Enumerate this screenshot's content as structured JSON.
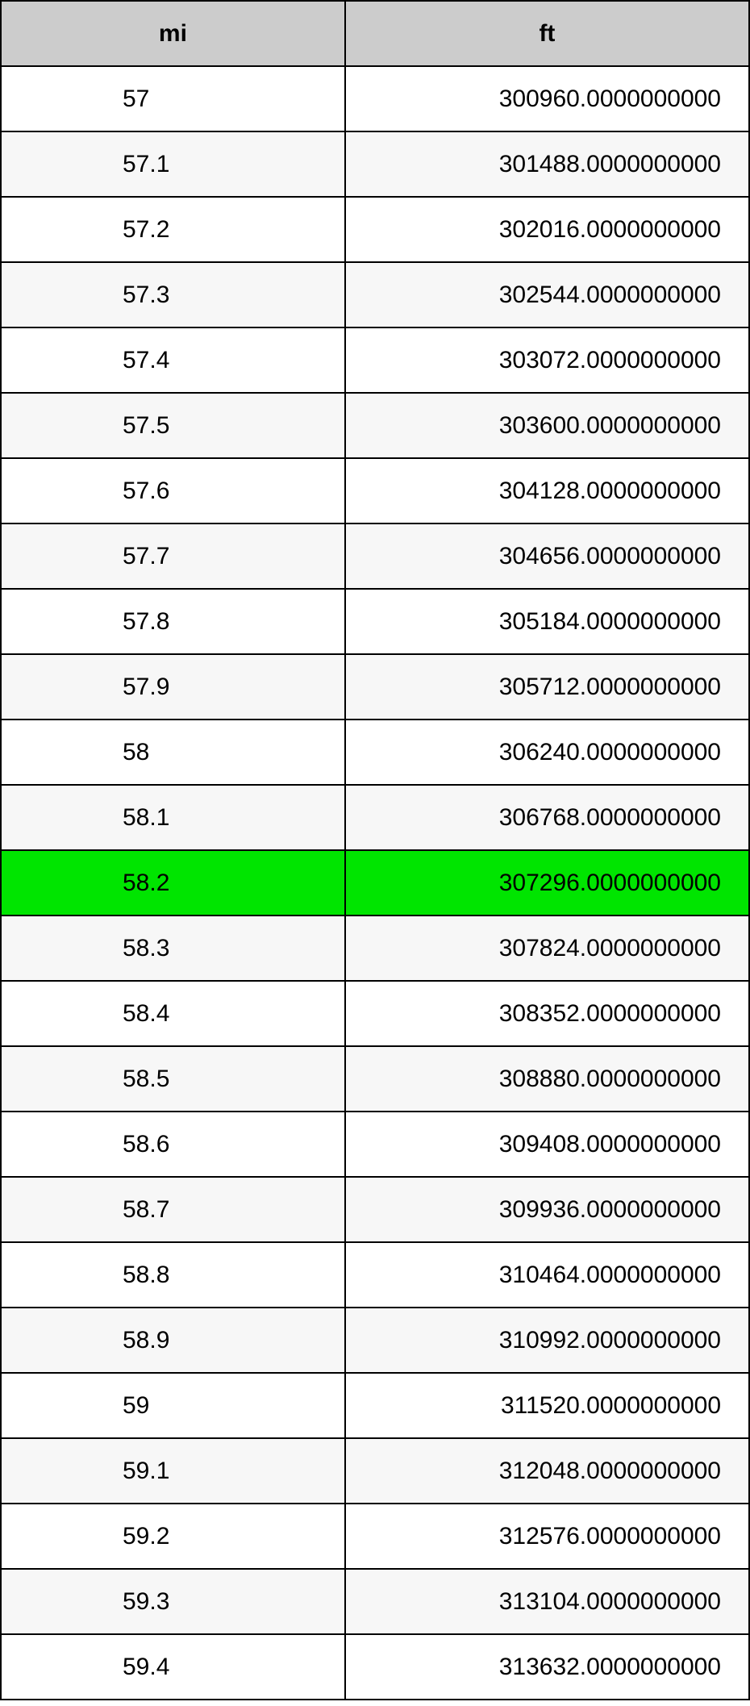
{
  "table": {
    "columns": [
      "mi",
      "ft"
    ],
    "header_bg": "#cccccc",
    "border_color": "#000000",
    "row_bg_even": "#ffffff",
    "row_bg_odd": "#f7f7f7",
    "highlight_bg": "#00e500",
    "font_size_pt": 22,
    "col_widths_pct": [
      46,
      54
    ],
    "highlight_index": 12,
    "rows": [
      {
        "mi": "57",
        "ft": "300960.0000000000"
      },
      {
        "mi": "57.1",
        "ft": "301488.0000000000"
      },
      {
        "mi": "57.2",
        "ft": "302016.0000000000"
      },
      {
        "mi": "57.3",
        "ft": "302544.0000000000"
      },
      {
        "mi": "57.4",
        "ft": "303072.0000000000"
      },
      {
        "mi": "57.5",
        "ft": "303600.0000000000"
      },
      {
        "mi": "57.6",
        "ft": "304128.0000000000"
      },
      {
        "mi": "57.7",
        "ft": "304656.0000000000"
      },
      {
        "mi": "57.8",
        "ft": "305184.0000000000"
      },
      {
        "mi": "57.9",
        "ft": "305712.0000000000"
      },
      {
        "mi": "58",
        "ft": "306240.0000000000"
      },
      {
        "mi": "58.1",
        "ft": "306768.0000000000"
      },
      {
        "mi": "58.2",
        "ft": "307296.0000000000"
      },
      {
        "mi": "58.3",
        "ft": "307824.0000000000"
      },
      {
        "mi": "58.4",
        "ft": "308352.0000000000"
      },
      {
        "mi": "58.5",
        "ft": "308880.0000000000"
      },
      {
        "mi": "58.6",
        "ft": "309408.0000000000"
      },
      {
        "mi": "58.7",
        "ft": "309936.0000000000"
      },
      {
        "mi": "58.8",
        "ft": "310464.0000000000"
      },
      {
        "mi": "58.9",
        "ft": "310992.0000000000"
      },
      {
        "mi": "59",
        "ft": "311520.0000000000"
      },
      {
        "mi": "59.1",
        "ft": "312048.0000000000"
      },
      {
        "mi": "59.2",
        "ft": "312576.0000000000"
      },
      {
        "mi": "59.3",
        "ft": "313104.0000000000"
      },
      {
        "mi": "59.4",
        "ft": "313632.0000000000"
      }
    ]
  }
}
